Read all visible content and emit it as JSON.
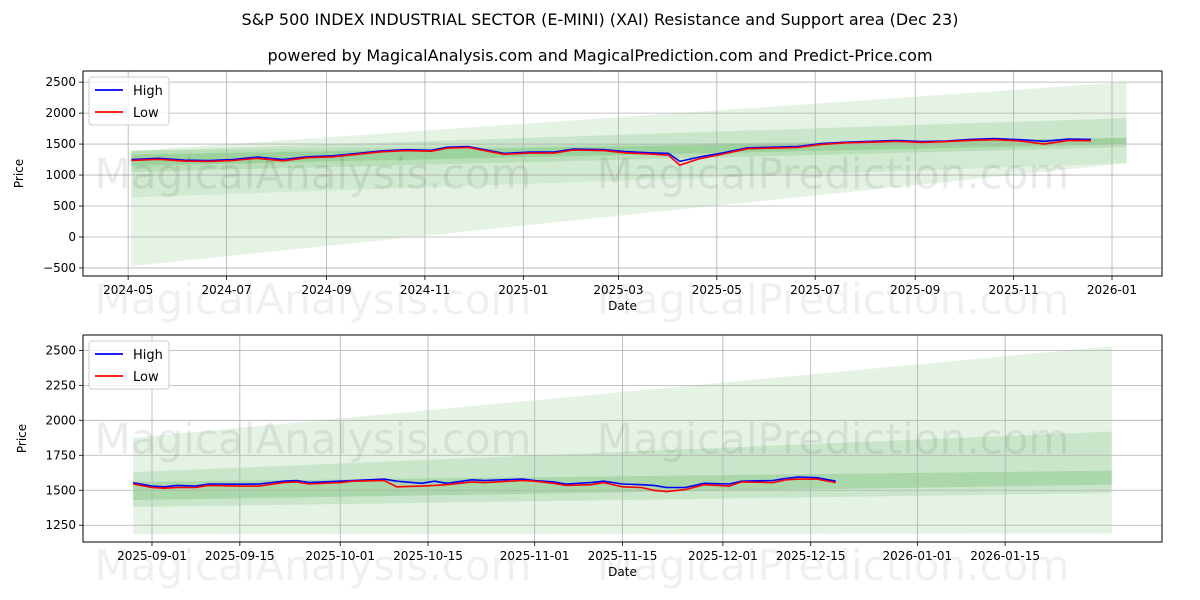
{
  "title": "S&P 500 INDEX INDUSTRIAL SECTOR (E-MINI) (XAI) Resistance and Support area (Dec 23)",
  "subtitle": "powered by MagicalAnalysis.com and MagicalPrediction.com and Predict-Price.com",
  "watermark": [
    "MagicalAnalysis.com",
    "MagicalPrediction.com"
  ],
  "colors": {
    "high": "#0000ff",
    "low": "#ff0000",
    "band": "#2ca02c",
    "grid": "#b0b0b0"
  },
  "chart_data": [
    {
      "type": "line",
      "xlabel": "Date",
      "ylabel": "Price",
      "xlim": [
        "2024-04-03",
        "2026-02-01"
      ],
      "ylim": [
        -630,
        2680
      ],
      "grid": true,
      "legend": "top-left",
      "yticks": [
        -500,
        0,
        500,
        1000,
        1500,
        2000,
        2500
      ],
      "yticklabels": [
        "−500",
        "0",
        "500",
        "1000",
        "1500",
        "2000",
        "2500"
      ],
      "xticks": [
        "2024-05-01",
        "2024-07-01",
        "2024-09-01",
        "2024-11-01",
        "2025-01-01",
        "2025-03-01",
        "2025-05-01",
        "2025-07-01",
        "2025-09-01",
        "2025-11-01",
        "2026-01-01"
      ],
      "xticklabels": [
        "2024-05",
        "2024-07",
        "2024-09",
        "2024-11",
        "2025-01",
        "2025-03",
        "2025-05",
        "2025-07",
        "2025-09",
        "2025-11",
        "2026-01"
      ],
      "bands": [
        {
          "start": "2024-05-03",
          "end": "2026-01-10",
          "low": [
            -470,
            1190
          ],
          "high": [
            1390,
            2500
          ],
          "alpha": 0.12
        },
        {
          "start": "2024-05-03",
          "end": "2026-01-10",
          "low": [
            640,
            1190
          ],
          "high": [
            1390,
            1600
          ],
          "alpha": 0.1
        },
        {
          "start": "2024-05-03",
          "end": "2026-01-10",
          "low": [
            1050,
            1450
          ],
          "high": [
            1390,
            1920
          ],
          "alpha": 0.15
        },
        {
          "start": "2024-05-03",
          "end": "2026-01-10",
          "low": [
            1150,
            1500
          ],
          "high": [
            1330,
            1600
          ],
          "alpha": 0.2
        }
      ],
      "series": [
        {
          "name": "High",
          "color": "#0000ff",
          "x": [
            "2024-05-03",
            "2024-05-20",
            "2024-06-05",
            "2024-06-20",
            "2024-07-05",
            "2024-07-20",
            "2024-08-05",
            "2024-08-20",
            "2024-09-05",
            "2024-09-20",
            "2024-10-05",
            "2024-10-20",
            "2024-11-05",
            "2024-11-15",
            "2024-11-28",
            "2024-12-10",
            "2024-12-20",
            "2025-01-05",
            "2025-01-20",
            "2025-02-01",
            "2025-02-20",
            "2025-03-05",
            "2025-03-20",
            "2025-04-01",
            "2025-04-08",
            "2025-04-20",
            "2025-05-05",
            "2025-05-20",
            "2025-06-05",
            "2025-06-20",
            "2025-07-05",
            "2025-07-20",
            "2025-08-05",
            "2025-08-20",
            "2025-09-05",
            "2025-09-20",
            "2025-10-05",
            "2025-10-20",
            "2025-11-05",
            "2025-11-20",
            "2025-12-05",
            "2025-12-19"
          ],
          "y": [
            1250,
            1270,
            1240,
            1235,
            1250,
            1290,
            1250,
            1295,
            1310,
            1350,
            1390,
            1410,
            1400,
            1450,
            1460,
            1400,
            1350,
            1370,
            1370,
            1420,
            1410,
            1380,
            1360,
            1350,
            1220,
            1290,
            1360,
            1440,
            1450,
            1460,
            1510,
            1530,
            1545,
            1560,
            1540,
            1550,
            1575,
            1590,
            1570,
            1545,
            1580,
            1575
          ]
        },
        {
          "name": "Low",
          "color": "#ff0000",
          "x": [
            "2024-05-03",
            "2024-05-20",
            "2024-06-05",
            "2024-06-20",
            "2024-07-05",
            "2024-07-20",
            "2024-08-05",
            "2024-08-20",
            "2024-09-05",
            "2024-09-20",
            "2024-10-05",
            "2024-10-20",
            "2024-11-05",
            "2024-11-15",
            "2024-11-28",
            "2024-12-10",
            "2024-12-20",
            "2025-01-05",
            "2025-01-20",
            "2025-02-01",
            "2025-02-20",
            "2025-03-05",
            "2025-03-20",
            "2025-04-01",
            "2025-04-08",
            "2025-04-20",
            "2025-05-05",
            "2025-05-20",
            "2025-06-05",
            "2025-06-20",
            "2025-07-05",
            "2025-07-20",
            "2025-08-05",
            "2025-08-20",
            "2025-09-05",
            "2025-09-20",
            "2025-10-05",
            "2025-10-20",
            "2025-11-05",
            "2025-11-20",
            "2025-12-05",
            "2025-12-19"
          ],
          "y": [
            1235,
            1255,
            1225,
            1220,
            1235,
            1270,
            1230,
            1280,
            1295,
            1335,
            1375,
            1395,
            1385,
            1435,
            1445,
            1385,
            1335,
            1355,
            1355,
            1405,
            1395,
            1360,
            1340,
            1320,
            1160,
            1260,
            1340,
            1425,
            1435,
            1445,
            1495,
            1520,
            1530,
            1545,
            1525,
            1540,
            1560,
            1570,
            1550,
            1500,
            1560,
            1555
          ]
        }
      ]
    },
    {
      "type": "line",
      "xlabel": "Date",
      "ylabel": "Price",
      "xlim": [
        "2025-08-21",
        "2026-02-09"
      ],
      "ylim": [
        1130,
        2610
      ],
      "grid": true,
      "legend": "top-left",
      "yticks": [
        1250,
        1500,
        1750,
        2000,
        2250,
        2500
      ],
      "yticklabels": [
        "1250",
        "1500",
        "1750",
        "2000",
        "2250",
        "2500"
      ],
      "xticks": [
        "2025-09-01",
        "2025-09-15",
        "2025-10-01",
        "2025-10-15",
        "2025-11-01",
        "2025-11-15",
        "2025-12-01",
        "2025-12-15",
        "2026-01-01",
        "2026-01-15"
      ],
      "xticklabels": [
        "2025-09-01",
        "2025-09-15",
        "2025-10-01",
        "2025-10-15",
        "2025-11-01",
        "2025-11-15",
        "2025-12-01",
        "2025-12-15",
        "2026-01-01",
        "2026-01-15"
      ],
      "bands": [
        {
          "start": "2025-08-29",
          "end": "2026-02-01",
          "low": [
            1185,
            1190
          ],
          "high": [
            1875,
            2530
          ],
          "alpha": 0.12
        },
        {
          "start": "2025-08-29",
          "end": "2026-02-01",
          "low": [
            1380,
            1480
          ],
          "high": [
            1630,
            1920
          ],
          "alpha": 0.15
        },
        {
          "start": "2025-08-29",
          "end": "2026-02-01",
          "low": [
            1430,
            1540
          ],
          "high": [
            1560,
            1640
          ],
          "alpha": 0.2
        }
      ],
      "series": [
        {
          "name": "High",
          "color": "#0000ff",
          "x": [
            "2025-08-29",
            "2025-09-01",
            "2025-09-03",
            "2025-09-05",
            "2025-09-08",
            "2025-09-10",
            "2025-09-15",
            "2025-09-18",
            "2025-09-22",
            "2025-09-24",
            "2025-09-26",
            "2025-10-01",
            "2025-10-03",
            "2025-10-08",
            "2025-10-10",
            "2025-10-14",
            "2025-10-16",
            "2025-10-18",
            "2025-10-22",
            "2025-10-24",
            "2025-10-30",
            "2025-11-01",
            "2025-11-04",
            "2025-11-06",
            "2025-11-10",
            "2025-11-12",
            "2025-11-15",
            "2025-11-18",
            "2025-11-20",
            "2025-11-22",
            "2025-11-25",
            "2025-11-28",
            "2025-12-02",
            "2025-12-04",
            "2025-12-09",
            "2025-12-11",
            "2025-12-13",
            "2025-12-16",
            "2025-12-19"
          ],
          "y": [
            1555,
            1530,
            1525,
            1535,
            1530,
            1545,
            1543,
            1545,
            1565,
            1570,
            1555,
            1565,
            1570,
            1580,
            1565,
            1550,
            1565,
            1550,
            1575,
            1570,
            1580,
            1570,
            1560,
            1545,
            1555,
            1565,
            1545,
            1540,
            1535,
            1520,
            1520,
            1550,
            1545,
            1565,
            1570,
            1585,
            1595,
            1590,
            1565
          ]
        },
        {
          "name": "Low",
          "color": "#ff0000",
          "x": [
            "2025-08-29",
            "2025-09-01",
            "2025-09-03",
            "2025-09-05",
            "2025-09-08",
            "2025-09-10",
            "2025-09-15",
            "2025-09-18",
            "2025-09-22",
            "2025-09-24",
            "2025-09-26",
            "2025-10-01",
            "2025-10-03",
            "2025-10-08",
            "2025-10-10",
            "2025-10-14",
            "2025-10-16",
            "2025-10-18",
            "2025-10-22",
            "2025-10-24",
            "2025-10-30",
            "2025-11-01",
            "2025-11-04",
            "2025-11-06",
            "2025-11-10",
            "2025-11-12",
            "2025-11-15",
            "2025-11-18",
            "2025-11-20",
            "2025-11-22",
            "2025-11-25",
            "2025-11-28",
            "2025-12-02",
            "2025-12-04",
            "2025-12-09",
            "2025-12-11",
            "2025-12-13",
            "2025-12-16",
            "2025-12-19"
          ],
          "y": [
            1545,
            1520,
            1515,
            1520,
            1520,
            1535,
            1530,
            1530,
            1555,
            1560,
            1545,
            1555,
            1565,
            1570,
            1525,
            1530,
            1535,
            1540,
            1560,
            1555,
            1570,
            1565,
            1550,
            1535,
            1540,
            1555,
            1525,
            1520,
            1500,
            1490,
            1505,
            1540,
            1530,
            1560,
            1555,
            1575,
            1580,
            1580,
            1555
          ]
        }
      ]
    }
  ]
}
